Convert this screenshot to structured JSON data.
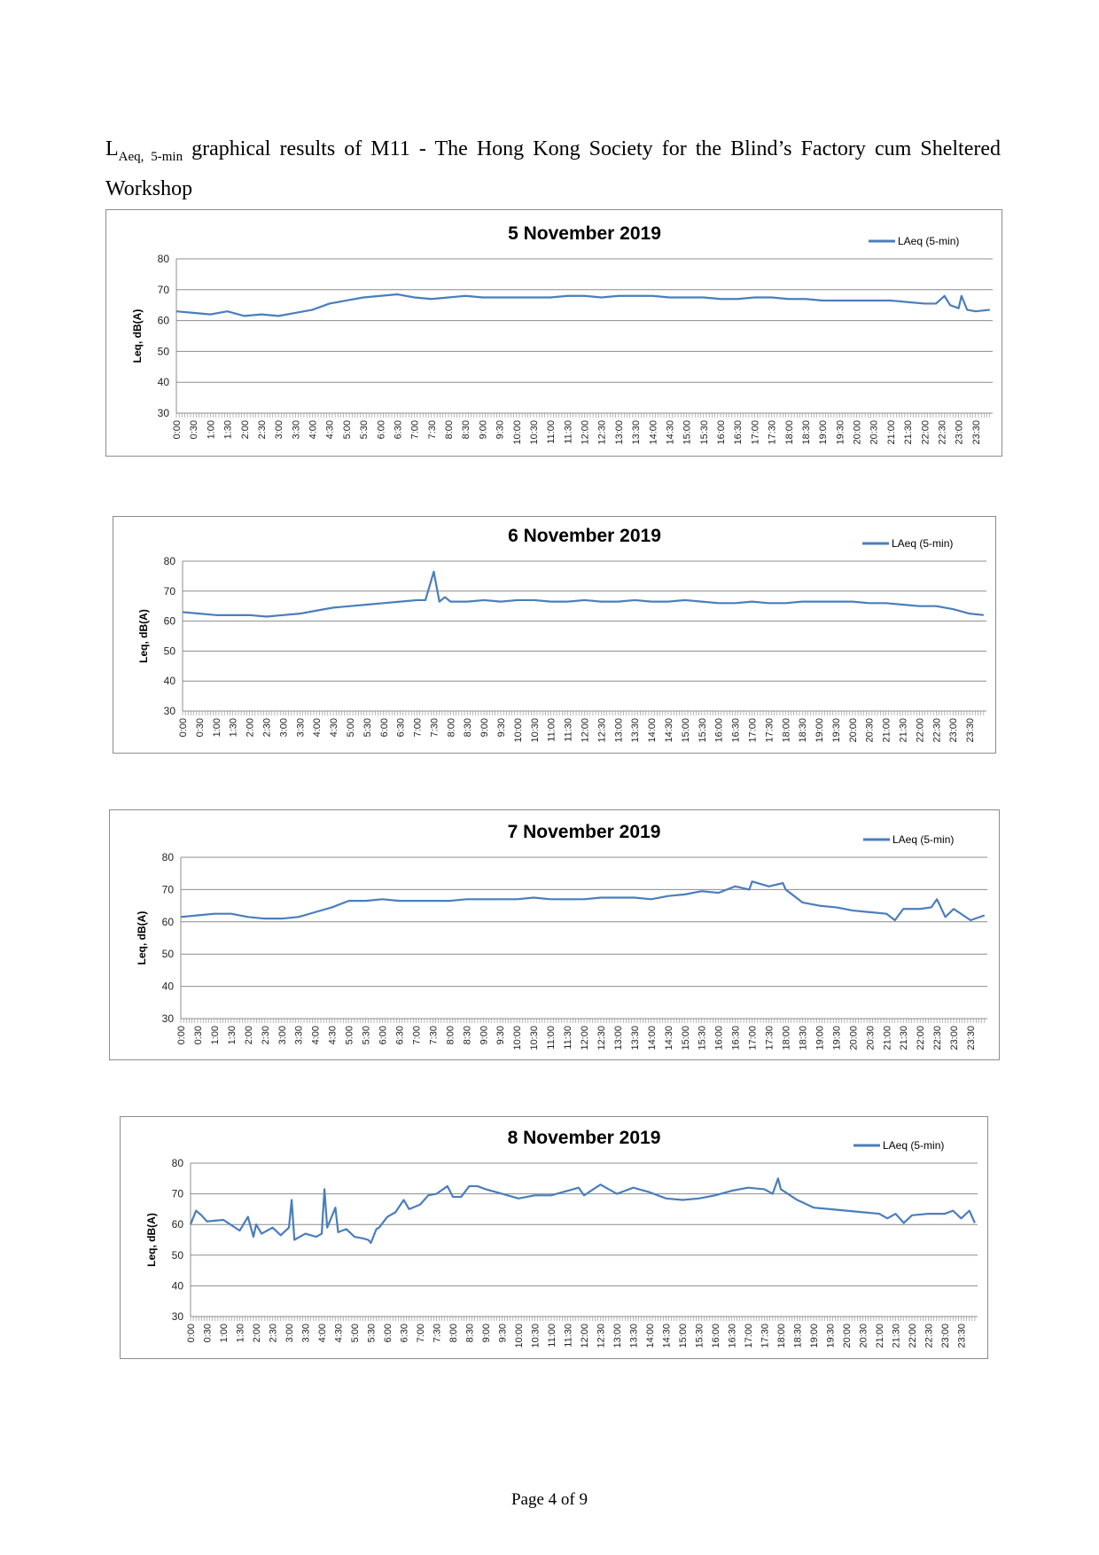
{
  "heading": {
    "main": "L",
    "subscript": "Aeq, 5-min",
    "rest": " graphical results of M11 - The Hong Kong Society for the Blind’s Factory cum Sheltered Workshop"
  },
  "footer": {
    "page_label": "Page 4 of 9"
  },
  "colors": {
    "series": "#4a7ebb",
    "grid": "#8c8c8c",
    "border": "#8c8c8c"
  },
  "chart_data": [
    {
      "type": "line",
      "title": "5 November 2019",
      "ylabel": "Leq, dB(A)",
      "ylim": [
        30,
        80
      ],
      "yticks": [
        30,
        40,
        50,
        60,
        70,
        80
      ],
      "grid": "horizontal",
      "legend_position": "top-right",
      "x_labels": [
        "0:00",
        "0:30",
        "1:00",
        "1:30",
        "2:00",
        "2:30",
        "3:00",
        "3:30",
        "4:00",
        "4:30",
        "5:00",
        "5:30",
        "6:00",
        "6:30",
        "7:00",
        "7:30",
        "8:00",
        "8:30",
        "9:00",
        "9:30",
        "10:00",
        "10:30",
        "11:00",
        "11:30",
        "12:00",
        "12:30",
        "13:00",
        "13:30",
        "14:00",
        "14:30",
        "15:00",
        "15:30",
        "16:00",
        "16:30",
        "17:00",
        "17:30",
        "18:00",
        "18:30",
        "19:00",
        "19:30",
        "20:00",
        "20:30",
        "21:00",
        "21:30",
        "22:00",
        "22:30",
        "23:00",
        "23:30"
      ],
      "series": [
        {
          "name": "LAeq (5-min)",
          "x": [
            "0:00",
            "0:30",
            "1:00",
            "1:30",
            "2:00",
            "2:30",
            "3:00",
            "3:30",
            "4:00",
            "4:30",
            "5:00",
            "5:30",
            "6:00",
            "6:30",
            "7:00",
            "7:30",
            "8:00",
            "8:30",
            "9:00",
            "9:30",
            "10:00",
            "10:30",
            "11:00",
            "11:30",
            "12:00",
            "12:30",
            "13:00",
            "13:30",
            "14:00",
            "14:30",
            "15:00",
            "15:30",
            "16:00",
            "16:30",
            "17:00",
            "17:30",
            "18:00",
            "18:30",
            "19:00",
            "19:30",
            "20:00",
            "20:30",
            "21:00",
            "21:30",
            "22:00",
            "22:20",
            "22:35",
            "22:45",
            "23:00",
            "23:05",
            "23:15",
            "23:30",
            "23:55"
          ],
          "values": [
            63,
            62.5,
            62,
            63,
            61.5,
            62,
            61.5,
            62.5,
            63.5,
            65.5,
            66.5,
            67.5,
            68,
            68.5,
            67.5,
            67,
            67.5,
            68,
            67.5,
            67.5,
            67.5,
            67.5,
            67.5,
            68,
            68,
            67.5,
            68,
            68,
            68,
            67.5,
            67.5,
            67.5,
            67,
            67,
            67.5,
            67.5,
            67,
            67,
            66.5,
            66.5,
            66.5,
            66.5,
            66.5,
            66,
            65.5,
            65.5,
            68,
            65,
            64,
            68,
            63.5,
            63,
            63.5
          ]
        }
      ]
    },
    {
      "type": "line",
      "title": "6 November 2019",
      "ylabel": "Leq, dB(A)",
      "ylim": [
        30,
        80
      ],
      "yticks": [
        30,
        40,
        50,
        60,
        70,
        80
      ],
      "grid": "horizontal",
      "legend_position": "top-right",
      "x_labels": [
        "0:00",
        "0:30",
        "1:00",
        "1:30",
        "2:00",
        "2:30",
        "3:00",
        "3:30",
        "4:00",
        "4:30",
        "5:00",
        "5:30",
        "6:00",
        "6:30",
        "7:00",
        "7:30",
        "8:00",
        "8:30",
        "9:00",
        "9:30",
        "10:00",
        "10:30",
        "11:00",
        "11:30",
        "12:00",
        "12:30",
        "13:00",
        "13:30",
        "14:00",
        "14:30",
        "15:00",
        "15:30",
        "16:00",
        "16:30",
        "17:00",
        "17:30",
        "18:00",
        "18:30",
        "19:00",
        "19:30",
        "20:00",
        "20:30",
        "21:00",
        "21:30",
        "22:00",
        "22:30",
        "23:00",
        "23:30"
      ],
      "series": [
        {
          "name": "LAeq (5-min)",
          "x": [
            "0:00",
            "0:30",
            "1:00",
            "1:30",
            "2:00",
            "2:30",
            "3:00",
            "3:30",
            "4:00",
            "4:30",
            "5:00",
            "5:30",
            "6:00",
            "6:30",
            "7:00",
            "7:15",
            "7:30",
            "7:40",
            "7:50",
            "8:00",
            "8:30",
            "9:00",
            "9:30",
            "10:00",
            "10:30",
            "11:00",
            "11:30",
            "12:00",
            "12:30",
            "13:00",
            "13:30",
            "14:00",
            "14:30",
            "15:00",
            "15:30",
            "16:00",
            "16:30",
            "17:00",
            "17:30",
            "18:00",
            "18:30",
            "19:00",
            "19:30",
            "20:00",
            "20:30",
            "21:00",
            "21:30",
            "22:00",
            "22:30",
            "23:00",
            "23:30",
            "23:55"
          ],
          "values": [
            63,
            62.5,
            62,
            62,
            62,
            61.5,
            62,
            62.5,
            63.5,
            64.5,
            65,
            65.5,
            66,
            66.5,
            67,
            67,
            76.5,
            66.5,
            68,
            66.5,
            66.5,
            67,
            66.5,
            67,
            67,
            66.5,
            66.5,
            67,
            66.5,
            66.5,
            67,
            66.5,
            66.5,
            67,
            66.5,
            66,
            66,
            66.5,
            66,
            66,
            66.5,
            66.5,
            66.5,
            66.5,
            66,
            66,
            65.5,
            65,
            65,
            64,
            62.5,
            62
          ]
        }
      ]
    },
    {
      "type": "line",
      "title": "7 November 2019",
      "ylabel": "Leq, dB(A)",
      "ylim": [
        30,
        80
      ],
      "yticks": [
        30,
        40,
        50,
        60,
        70,
        80
      ],
      "grid": "horizontal",
      "legend_position": "top-right",
      "x_labels": [
        "0:00",
        "0:30",
        "1:00",
        "1:30",
        "2:00",
        "2:30",
        "3:00",
        "3:30",
        "4:00",
        "4:30",
        "5:00",
        "5:30",
        "6:00",
        "6:30",
        "7:00",
        "7:30",
        "8:00",
        "8:30",
        "9:00",
        "9:30",
        "10:00",
        "10:30",
        "11:00",
        "11:30",
        "12:00",
        "12:30",
        "13:00",
        "13:30",
        "14:00",
        "14:30",
        "15:00",
        "15:30",
        "16:00",
        "16:30",
        "17:00",
        "17:30",
        "18:00",
        "18:30",
        "19:00",
        "19:30",
        "20:00",
        "20:30",
        "21:00",
        "21:30",
        "22:00",
        "22:30",
        "23:00",
        "23:30"
      ],
      "series": [
        {
          "name": "LAeq (5-min)",
          "x": [
            "0:00",
            "0:30",
            "1:00",
            "1:30",
            "2:00",
            "2:30",
            "3:00",
            "3:30",
            "4:00",
            "4:30",
            "5:00",
            "5:30",
            "6:00",
            "6:30",
            "7:00",
            "7:30",
            "8:00",
            "8:30",
            "9:00",
            "9:30",
            "10:00",
            "10:30",
            "11:00",
            "11:30",
            "12:00",
            "12:30",
            "13:00",
            "13:30",
            "14:00",
            "14:30",
            "15:00",
            "15:30",
            "16:00",
            "16:30",
            "16:55",
            "17:00",
            "17:30",
            "17:55",
            "18:00",
            "18:30",
            "19:00",
            "19:30",
            "20:00",
            "20:30",
            "21:00",
            "21:15",
            "21:30",
            "22:00",
            "22:20",
            "22:30",
            "22:45",
            "23:00",
            "23:30",
            "23:55"
          ],
          "values": [
            61.5,
            62,
            62.5,
            62.5,
            61.5,
            61,
            61,
            61.5,
            63,
            64.5,
            66.5,
            66.5,
            67,
            66.5,
            66.5,
            66.5,
            66.5,
            67,
            67,
            67,
            67,
            67.5,
            67,
            67,
            67,
            67.5,
            67.5,
            67.5,
            67,
            68,
            68.5,
            69.5,
            69,
            71,
            70,
            72.5,
            71,
            72,
            70,
            66,
            65,
            64.5,
            63.5,
            63,
            62.5,
            60.5,
            64,
            64,
            64.5,
            67,
            61.5,
            64,
            60.5,
            62
          ]
        }
      ]
    },
    {
      "type": "line",
      "title": "8 November 2019",
      "ylabel": "Leq, dB(A)",
      "ylim": [
        30,
        80
      ],
      "yticks": [
        30,
        40,
        50,
        60,
        70,
        80
      ],
      "grid": "horizontal",
      "legend_position": "top-right",
      "x_labels": [
        "0:00",
        "0:30",
        "1:00",
        "1:30",
        "2:00",
        "2:30",
        "3:00",
        "3:30",
        "4:00",
        "4:30",
        "5:00",
        "5:30",
        "6:00",
        "6:30",
        "7:00",
        "7:30",
        "8:00",
        "8:30",
        "9:00",
        "9:30",
        "10:00",
        "10:30",
        "11:00",
        "11:30",
        "12:00",
        "12:30",
        "13:00",
        "13:30",
        "14:00",
        "14:30",
        "15:00",
        "15:30",
        "16:00",
        "16:30",
        "17:00",
        "17:30",
        "18:00",
        "18:30",
        "19:00",
        "19:30",
        "20:00",
        "20:30",
        "21:00",
        "21:30",
        "22:00",
        "22:30",
        "23:00",
        "23:30"
      ],
      "series": [
        {
          "name": "LAeq (5-min)",
          "x": [
            "0:00",
            "0:10",
            "0:20",
            "0:30",
            "1:00",
            "1:30",
            "1:45",
            "1:55",
            "2:00",
            "2:10",
            "2:30",
            "2:45",
            "3:00",
            "3:05",
            "3:10",
            "3:30",
            "3:50",
            "4:00",
            "4:05",
            "4:10",
            "4:25",
            "4:30",
            "4:45",
            "5:00",
            "5:15",
            "5:25",
            "5:30",
            "5:40",
            "5:45",
            "6:00",
            "6:15",
            "6:30",
            "6:40",
            "7:00",
            "7:15",
            "7:30",
            "7:50",
            "8:00",
            "8:15",
            "8:30",
            "8:45",
            "9:00",
            "9:30",
            "10:00",
            "10:30",
            "11:00",
            "11:30",
            "11:50",
            "12:00",
            "12:30",
            "13:00",
            "13:30",
            "14:00",
            "14:30",
            "15:00",
            "15:30",
            "16:00",
            "16:30",
            "17:00",
            "17:30",
            "17:45",
            "17:55",
            "18:00",
            "18:30",
            "19:00",
            "19:30",
            "20:00",
            "20:30",
            "21:00",
            "21:15",
            "21:30",
            "21:45",
            "22:00",
            "22:30",
            "23:00",
            "23:15",
            "23:30",
            "23:45",
            "23:55"
          ],
          "values": [
            60,
            64.5,
            63,
            61,
            61.5,
            58,
            62.5,
            56,
            60,
            57,
            59,
            56.5,
            59,
            68,
            55,
            57,
            56,
            57,
            71.5,
            59,
            65.5,
            57.5,
            58.5,
            56,
            55.5,
            55,
            54,
            58.5,
            59,
            62.5,
            64,
            68,
            65,
            66.5,
            69.5,
            70,
            72.5,
            69,
            69,
            72.5,
            72.5,
            71.5,
            70,
            68.5,
            69.5,
            69.5,
            71,
            72,
            69.5,
            73,
            70,
            72,
            70.5,
            68.5,
            68,
            68.5,
            69.5,
            71,
            72,
            71.5,
            70,
            75,
            71.5,
            68,
            65.5,
            65,
            64.5,
            64,
            63.5,
            62,
            63.5,
            60.5,
            63,
            63.5,
            63.5,
            64.5,
            62,
            64.5,
            60.5
          ]
        }
      ]
    }
  ]
}
